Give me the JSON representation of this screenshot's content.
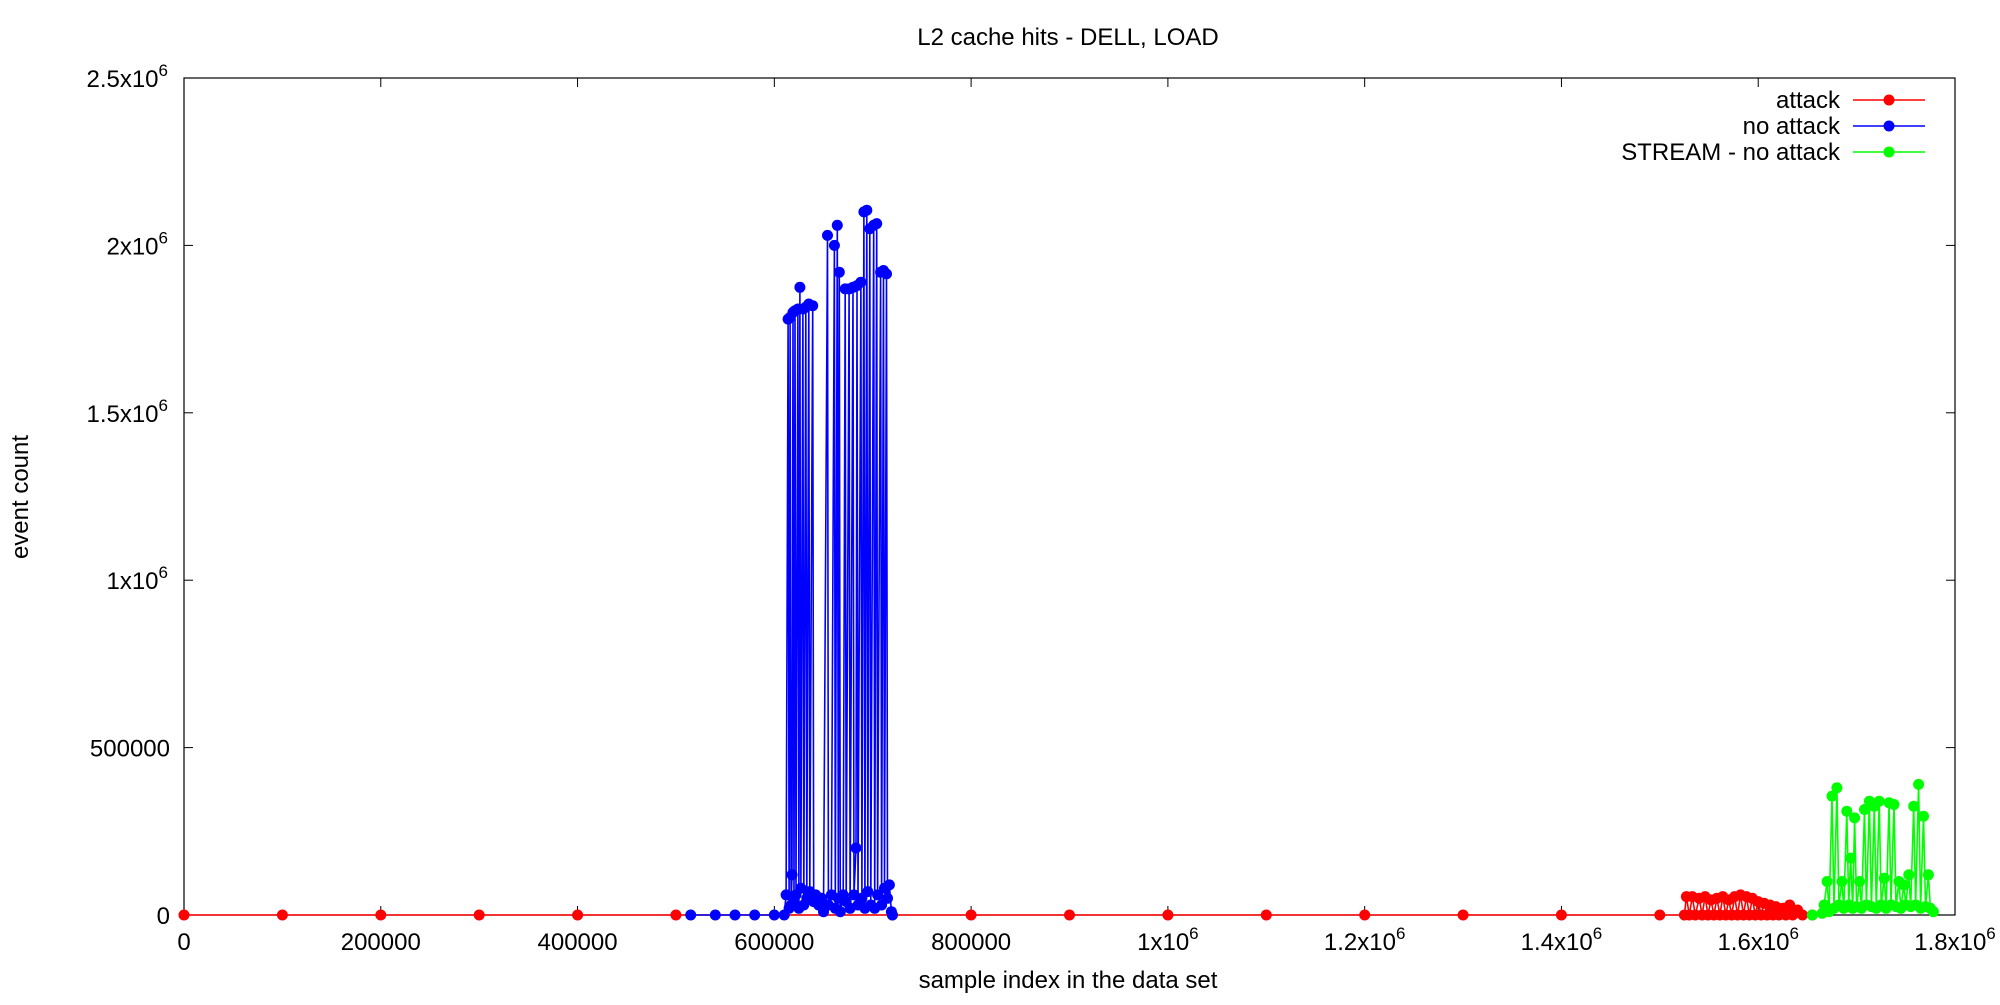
{
  "chart_data": {
    "type": "line",
    "title": "L2 cache hits - DELL, LOAD",
    "xlabel": "sample index in the data set",
    "ylabel": "event count",
    "xlim": [
      0,
      1800000
    ],
    "ylim": [
      0,
      2500000
    ],
    "x_ticks": [
      {
        "value": 0,
        "label": "0"
      },
      {
        "value": 200000,
        "label": "200000"
      },
      {
        "value": 400000,
        "label": "400000"
      },
      {
        "value": 600000,
        "label": "600000"
      },
      {
        "value": 800000,
        "label": "800000"
      },
      {
        "value": 1000000,
        "label": "1x10",
        "exp": "6"
      },
      {
        "value": 1200000,
        "label": "1.2x10",
        "exp": "6"
      },
      {
        "value": 1400000,
        "label": "1.4x10",
        "exp": "6"
      },
      {
        "value": 1600000,
        "label": "1.6x10",
        "exp": "6"
      },
      {
        "value": 1800000,
        "label": "1.8x10",
        "exp": "6"
      }
    ],
    "y_ticks": [
      {
        "value": 0,
        "label": "0"
      },
      {
        "value": 500000,
        "label": "500000"
      },
      {
        "value": 1000000,
        "label": "1x10",
        "exp": "6"
      },
      {
        "value": 1500000,
        "label": "1.5x10",
        "exp": "6"
      },
      {
        "value": 2000000,
        "label": "2x10",
        "exp": "6"
      },
      {
        "value": 2500000,
        "label": "2.5x10",
        "exp": "6"
      }
    ],
    "grid": false,
    "legend_position": "top-right",
    "series": [
      {
        "name": "attack",
        "color": "#ff0000",
        "points": [
          [
            0,
            0
          ],
          [
            100000,
            0
          ],
          [
            200000,
            0
          ],
          [
            300000,
            0
          ],
          [
            400000,
            0
          ],
          [
            500000,
            0
          ],
          [
            720000,
            0
          ],
          [
            800000,
            0
          ],
          [
            900000,
            0
          ],
          [
            1000000,
            0
          ],
          [
            1100000,
            0
          ],
          [
            1200000,
            0
          ],
          [
            1300000,
            0
          ],
          [
            1400000,
            0
          ],
          [
            1500000,
            0
          ],
          [
            1525000,
            0
          ],
          [
            1527000,
            55000
          ],
          [
            1530000,
            0
          ],
          [
            1533000,
            55000
          ],
          [
            1536000,
            0
          ],
          [
            1540000,
            50000
          ],
          [
            1543000,
            0
          ],
          [
            1546000,
            55000
          ],
          [
            1549000,
            0
          ],
          [
            1552000,
            45000
          ],
          [
            1555000,
            0
          ],
          [
            1558000,
            50000
          ],
          [
            1561000,
            0
          ],
          [
            1564000,
            55000
          ],
          [
            1567000,
            0
          ],
          [
            1570000,
            45000
          ],
          [
            1573000,
            0
          ],
          [
            1576000,
            55000
          ],
          [
            1579000,
            0
          ],
          [
            1582000,
            60000
          ],
          [
            1585000,
            0
          ],
          [
            1588000,
            55000
          ],
          [
            1591000,
            0
          ],
          [
            1594000,
            50000
          ],
          [
            1597000,
            0
          ],
          [
            1600000,
            40000
          ],
          [
            1603000,
            0
          ],
          [
            1606000,
            35000
          ],
          [
            1609000,
            0
          ],
          [
            1612000,
            30000
          ],
          [
            1615000,
            0
          ],
          [
            1618000,
            25000
          ],
          [
            1621000,
            0
          ],
          [
            1625000,
            20000
          ],
          [
            1628000,
            0
          ],
          [
            1632000,
            30000
          ],
          [
            1635000,
            0
          ],
          [
            1640000,
            15000
          ],
          [
            1645000,
            0
          ],
          [
            1655000,
            0
          ]
        ]
      },
      {
        "name": "no attack",
        "color": "#0000ff",
        "points": [
          [
            515000,
            0
          ],
          [
            540000,
            0
          ],
          [
            560000,
            0
          ],
          [
            580000,
            0
          ],
          [
            600000,
            0
          ],
          [
            610000,
            0
          ],
          [
            612000,
            60000
          ],
          [
            614000,
            1780000
          ],
          [
            615000,
            20000
          ],
          [
            616000,
            1785000
          ],
          [
            617000,
            30000
          ],
          [
            618000,
            120000
          ],
          [
            619000,
            1800000
          ],
          [
            620000,
            40000
          ],
          [
            621000,
            1805000
          ],
          [
            622000,
            60000
          ],
          [
            624000,
            1810000
          ],
          [
            625000,
            20000
          ],
          [
            626000,
            1875000
          ],
          [
            627000,
            80000
          ],
          [
            629000,
            1810000
          ],
          [
            630000,
            30000
          ],
          [
            632000,
            1815000
          ],
          [
            633000,
            50000
          ],
          [
            635000,
            1825000
          ],
          [
            636000,
            70000
          ],
          [
            639000,
            1820000
          ],
          [
            640000,
            40000
          ],
          [
            642000,
            60000
          ],
          [
            645000,
            30000
          ],
          [
            648000,
            50000
          ],
          [
            650000,
            10000
          ],
          [
            654000,
            2030000
          ],
          [
            655000,
            30000
          ],
          [
            658000,
            60000
          ],
          [
            661000,
            2000000
          ],
          [
            662000,
            20000
          ],
          [
            664000,
            2060000
          ],
          [
            665000,
            50000
          ],
          [
            666000,
            1920000
          ],
          [
            667000,
            10000
          ],
          [
            670000,
            60000
          ],
          [
            672000,
            1870000
          ],
          [
            673000,
            40000
          ],
          [
            676000,
            1870000
          ],
          [
            677000,
            20000
          ],
          [
            680000,
            1875000
          ],
          [
            681000,
            60000
          ],
          [
            683000,
            200000
          ],
          [
            684000,
            1880000
          ],
          [
            685000,
            30000
          ],
          [
            688000,
            1890000
          ],
          [
            689000,
            50000
          ],
          [
            691000,
            2100000
          ],
          [
            692000,
            20000
          ],
          [
            694000,
            2105000
          ],
          [
            695000,
            70000
          ],
          [
            697000,
            2050000
          ],
          [
            698000,
            30000
          ],
          [
            701000,
            2060000
          ],
          [
            702000,
            20000
          ],
          [
            704000,
            2065000
          ],
          [
            705000,
            60000
          ],
          [
            708000,
            1920000
          ],
          [
            709000,
            30000
          ],
          [
            711000,
            1925000
          ],
          [
            712000,
            80000
          ],
          [
            714000,
            1915000
          ],
          [
            715000,
            50000
          ],
          [
            717000,
            90000
          ],
          [
            719000,
            10000
          ],
          [
            720000,
            0
          ]
        ]
      },
      {
        "name": "STREAM - no attack",
        "color": "#00ff00",
        "points": [
          [
            1655000,
            0
          ],
          [
            1665000,
            5000
          ],
          [
            1667000,
            30000
          ],
          [
            1670000,
            100000
          ],
          [
            1672000,
            10000
          ],
          [
            1675000,
            355000
          ],
          [
            1677000,
            20000
          ],
          [
            1680000,
            380000
          ],
          [
            1682000,
            30000
          ],
          [
            1685000,
            100000
          ],
          [
            1687000,
            20000
          ],
          [
            1690000,
            310000
          ],
          [
            1692000,
            30000
          ],
          [
            1694000,
            170000
          ],
          [
            1696000,
            20000
          ],
          [
            1698000,
            290000
          ],
          [
            1700000,
            25000
          ],
          [
            1703000,
            100000
          ],
          [
            1705000,
            20000
          ],
          [
            1708000,
            315000
          ],
          [
            1710000,
            30000
          ],
          [
            1713000,
            340000
          ],
          [
            1715000,
            25000
          ],
          [
            1718000,
            325000
          ],
          [
            1720000,
            20000
          ],
          [
            1723000,
            340000
          ],
          [
            1725000,
            30000
          ],
          [
            1728000,
            110000
          ],
          [
            1730000,
            20000
          ],
          [
            1733000,
            335000
          ],
          [
            1735000,
            30000
          ],
          [
            1738000,
            330000
          ],
          [
            1740000,
            25000
          ],
          [
            1743000,
            100000
          ],
          [
            1745000,
            20000
          ],
          [
            1748000,
            90000
          ],
          [
            1750000,
            30000
          ],
          [
            1753000,
            120000
          ],
          [
            1755000,
            25000
          ],
          [
            1758000,
            325000
          ],
          [
            1760000,
            30000
          ],
          [
            1763000,
            390000
          ],
          [
            1765000,
            20000
          ],
          [
            1768000,
            295000
          ],
          [
            1770000,
            25000
          ],
          [
            1773000,
            120000
          ],
          [
            1775000,
            20000
          ],
          [
            1778000,
            10000
          ]
        ]
      }
    ]
  }
}
